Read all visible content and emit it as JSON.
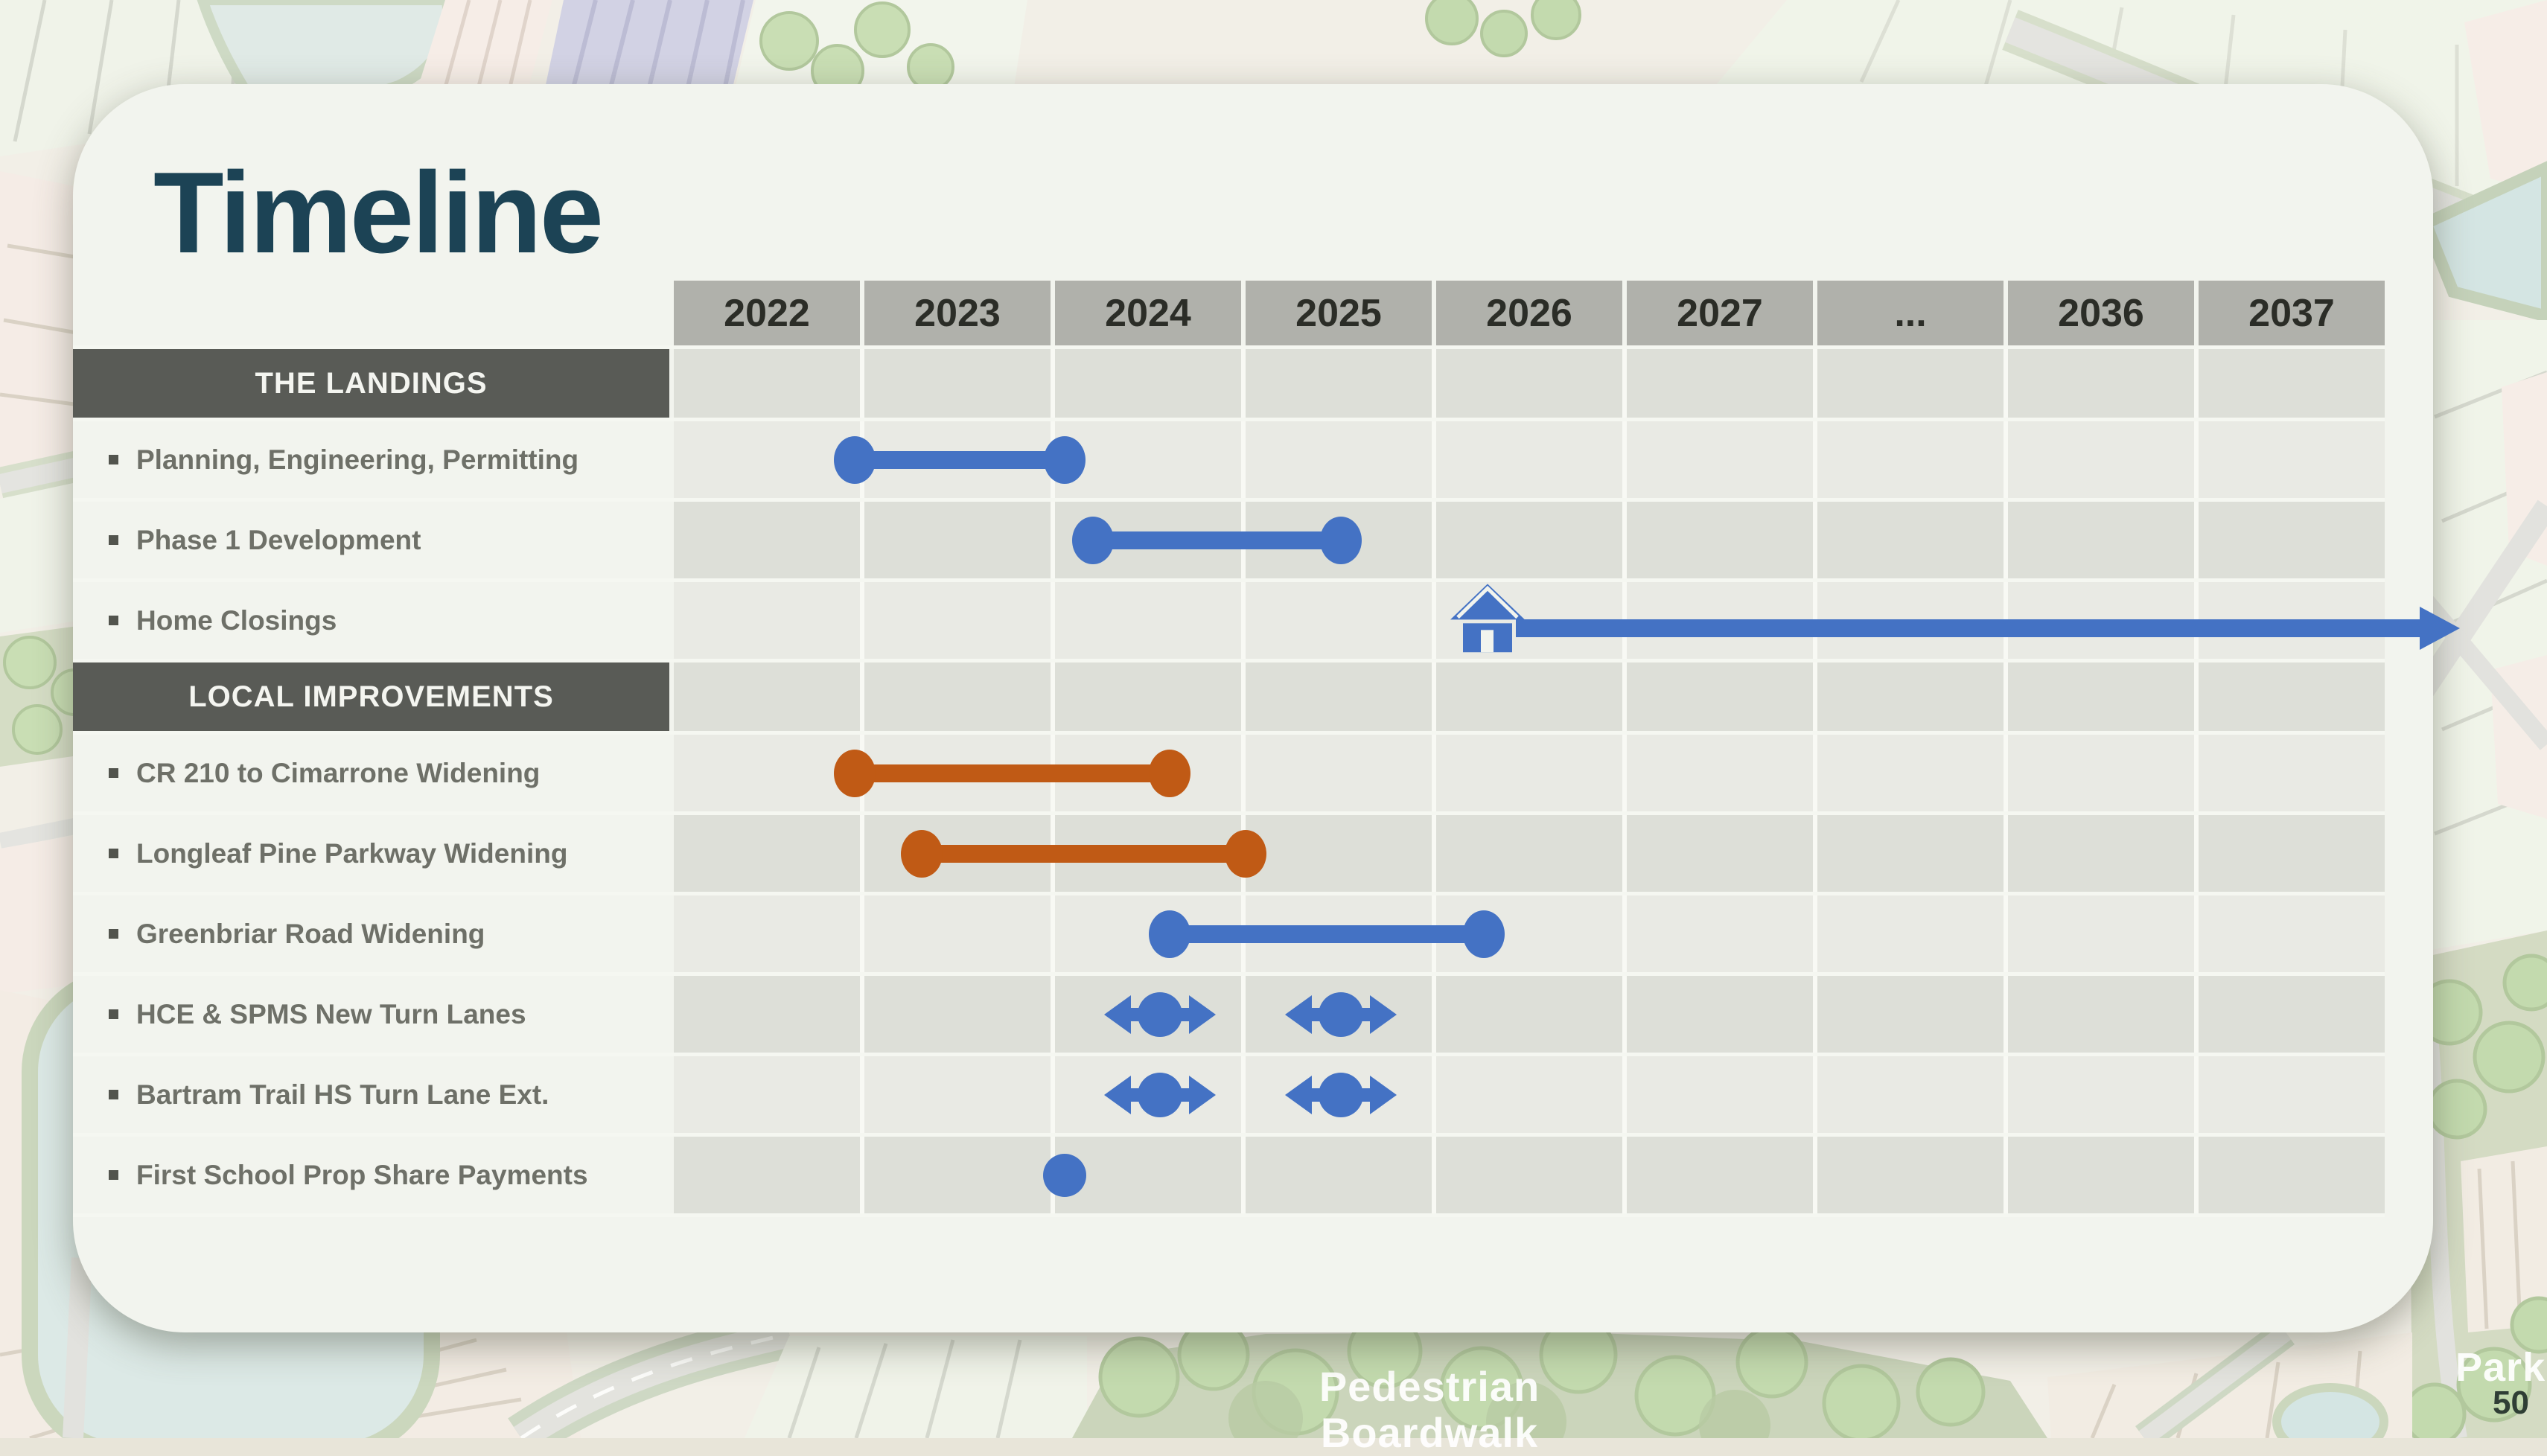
{
  "slide": {
    "title": "Timeline",
    "page_number": "50"
  },
  "map_labels": {
    "boardwalk_line1": "Pedestrian",
    "boardwalk_line2": "Boardwalk",
    "park": "Park"
  },
  "colors": {
    "accent_blue": "#4472c4",
    "accent_orange": "#c05a15",
    "title_text": "#1c4355",
    "section_bg": "#595b56",
    "section_text": "#f4f5f0",
    "year_header_bg": "#b0b1ab",
    "year_header_text": "#2b2d27",
    "stripe_light": "#e9eae4",
    "stripe_dark": "#dddfd8",
    "card_bg": "#f2f4ee",
    "task_text": "#6e7068"
  },
  "chart_data": {
    "type": "gantt",
    "title": "Timeline",
    "axis": {
      "start_year": 2022,
      "columns_are_years": true,
      "note": "column after 2027 is an ellipsis gap to 2036"
    },
    "columns": [
      "2022",
      "2023",
      "2024",
      "2025",
      "2026",
      "2027",
      "...",
      "2036",
      "2037"
    ],
    "rows": [
      {
        "kind": "section",
        "label": "THE LANDINGS"
      },
      {
        "kind": "task",
        "label": "Planning, Engineering, Permitting",
        "marker": {
          "type": "range_bar",
          "color": "blue",
          "start": 2022.95,
          "end": 2024.05
        }
      },
      {
        "kind": "task",
        "label": "Phase 1 Development",
        "marker": {
          "type": "range_bar",
          "color": "blue",
          "start": 2024.2,
          "end": 2025.5
        }
      },
      {
        "kind": "task",
        "label": "Home Closings",
        "marker": {
          "type": "house_arrow",
          "color": "blue",
          "start": 2026.27,
          "extends_beyond": "2037"
        }
      },
      {
        "kind": "section",
        "label": "LOCAL IMPROVEMENTS"
      },
      {
        "kind": "task",
        "label": "CR 210 to Cimarrone Widening",
        "marker": {
          "type": "range_bar",
          "color": "orange",
          "start": 2022.95,
          "end": 2024.6
        }
      },
      {
        "kind": "task",
        "label": "Longleaf Pine Parkway Widening",
        "marker": {
          "type": "range_bar",
          "color": "orange",
          "start": 2023.3,
          "end": 2025.0
        }
      },
      {
        "kind": "task",
        "label": "Greenbriar Road Widening",
        "marker": {
          "type": "range_bar",
          "color": "blue",
          "start": 2024.6,
          "end": 2026.25
        }
      },
      {
        "kind": "task",
        "label": "HCE & SPMS New Turn Lanes",
        "marker": {
          "type": "double_arrow_points",
          "color": "blue",
          "points": [
            2024.55,
            2025.5
          ]
        }
      },
      {
        "kind": "task",
        "label": "Bartram Trail HS Turn Lane Ext.",
        "marker": {
          "type": "double_arrow_points",
          "color": "blue",
          "points": [
            2024.55,
            2025.5
          ]
        }
      },
      {
        "kind": "task",
        "label": "First School Prop Share Payments",
        "marker": {
          "type": "dot",
          "color": "blue",
          "points": [
            2024.05
          ]
        }
      }
    ]
  }
}
